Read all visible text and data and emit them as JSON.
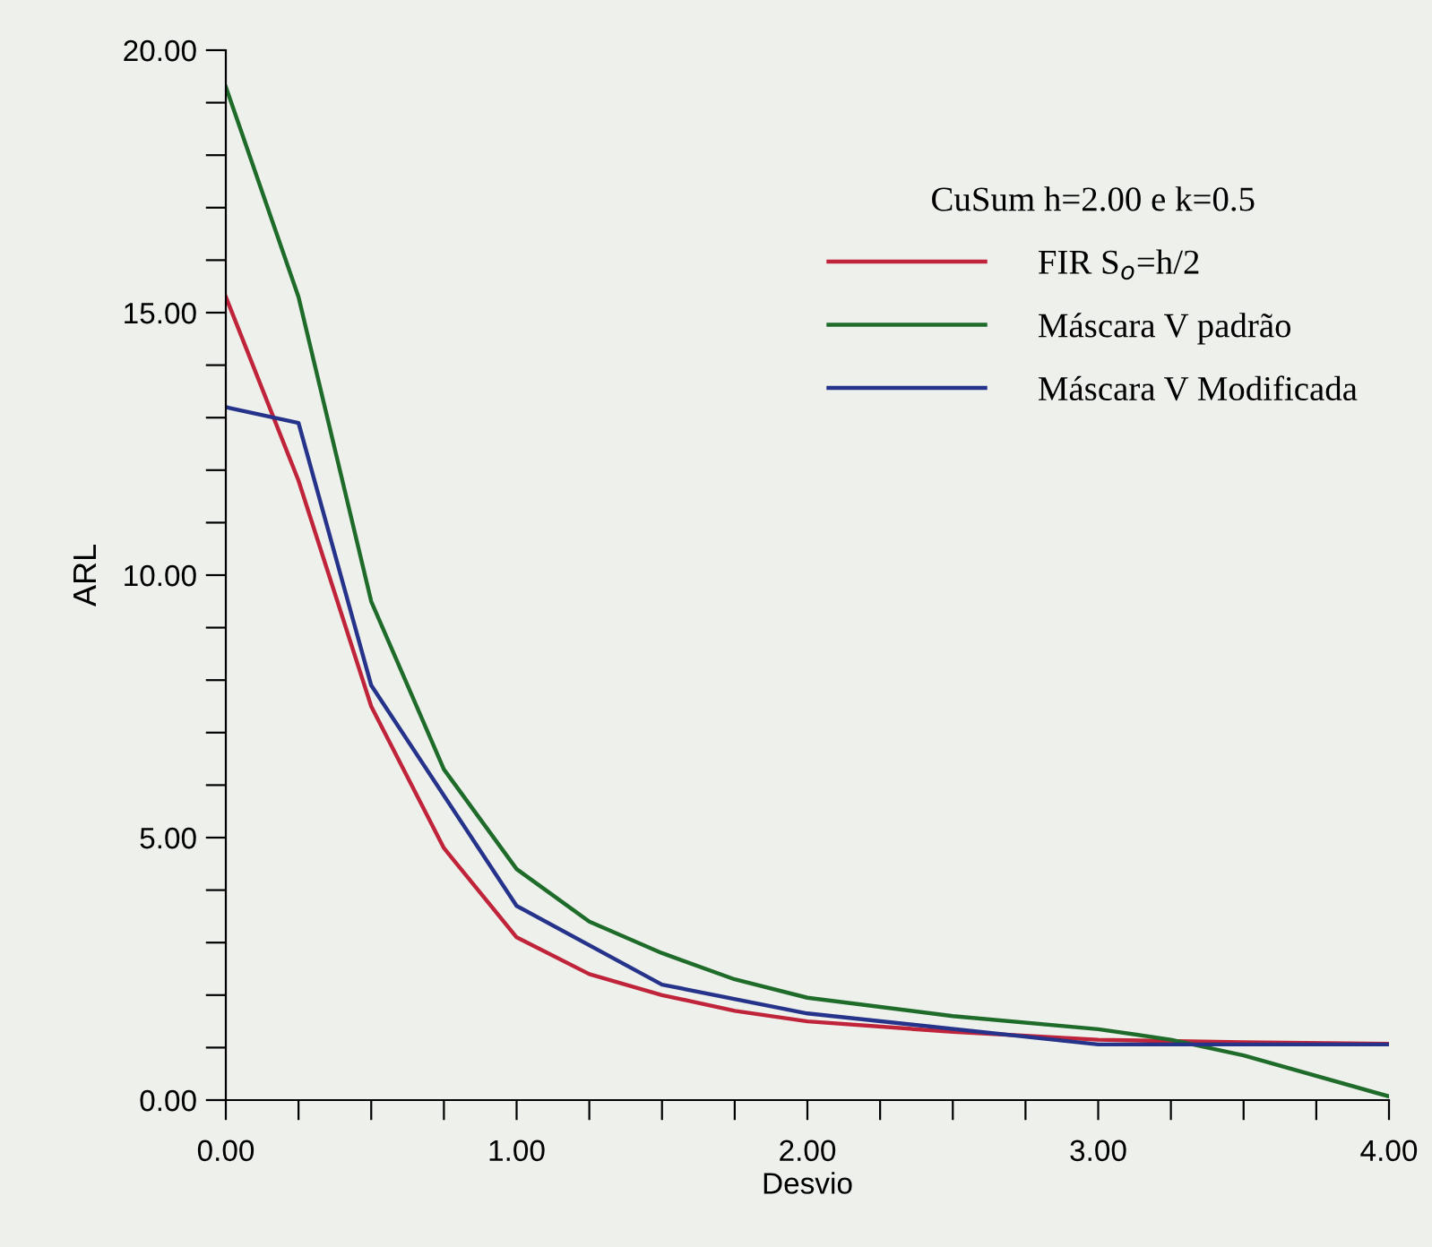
{
  "chart_data": {
    "type": "line",
    "xlabel": "Desvio",
    "ylabel": "ARL",
    "legend_title": "CuSum h=2.00 e k=0.5",
    "series": [
      {
        "name": "FIR S$_{o}$=h/2",
        "color": "#c0243a",
        "x": [
          0,
          0.25,
          0.5,
          0.75,
          1,
          1.25,
          1.5,
          1.75,
          2,
          2.5,
          3,
          3.5,
          4
        ],
        "values": [
          15.3,
          11.8,
          7.5,
          4.8,
          3.1,
          2.4,
          2.0,
          1.7,
          1.5,
          1.3,
          1.15,
          1.1,
          1.07
        ]
      },
      {
        "name": "Máscara V padrão",
        "color": "#1e6b2a",
        "x": [
          0,
          0.25,
          0.5,
          0.75,
          1,
          1.25,
          1.5,
          1.75,
          2,
          2.5,
          3,
          3.25,
          3.5,
          4
        ],
        "values": [
          19.3,
          15.3,
          9.5,
          6.3,
          4.4,
          3.4,
          2.8,
          2.3,
          1.95,
          1.6,
          1.35,
          1.15,
          0.85,
          0.07
        ]
      },
      {
        "name": "Máscara V Modificada",
        "color": "#26338a",
        "x": [
          0,
          0.25,
          0.5,
          1,
          1.5,
          2,
          3,
          4
        ],
        "values": [
          13.2,
          12.9,
          7.9,
          3.7,
          2.2,
          1.65,
          1.06,
          1.06
        ]
      }
    ],
    "xlim": [
      0,
      4
    ],
    "ylim": [
      0,
      20
    ],
    "xticks": [
      {
        "value": 0,
        "label": "0.00"
      },
      {
        "value": 0.25,
        "label": null
      },
      {
        "value": 0.5,
        "label": null
      },
      {
        "value": 0.75,
        "label": null
      },
      {
        "value": 1,
        "label": "1.00"
      },
      {
        "value": 1.25,
        "label": null
      },
      {
        "value": 1.5,
        "label": null
      },
      {
        "value": 1.75,
        "label": null
      },
      {
        "value": 2,
        "label": "2.00"
      },
      {
        "value": 2.25,
        "label": null
      },
      {
        "value": 2.5,
        "label": null
      },
      {
        "value": 2.75,
        "label": null
      },
      {
        "value": 3,
        "label": "3.00"
      },
      {
        "value": 3.25,
        "label": null
      },
      {
        "value": 3.5,
        "label": null
      },
      {
        "value": 3.75,
        "label": null
      },
      {
        "value": 4,
        "label": "4.00"
      }
    ],
    "yticks": [
      {
        "value": 0,
        "label": "0.00"
      },
      {
        "value": 1,
        "label": null
      },
      {
        "value": 2,
        "label": null
      },
      {
        "value": 3,
        "label": null
      },
      {
        "value": 4,
        "label": null
      },
      {
        "value": 5,
        "label": "5.00"
      },
      {
        "value": 6,
        "label": null
      },
      {
        "value": 7,
        "label": null
      },
      {
        "value": 8,
        "label": null
      },
      {
        "value": 9,
        "label": null
      },
      {
        "value": 10,
        "label": "10.00"
      },
      {
        "value": 11,
        "label": null
      },
      {
        "value": 12,
        "label": null
      },
      {
        "value": 13,
        "label": null
      },
      {
        "value": 14,
        "label": null
      },
      {
        "value": 15,
        "label": "15.00"
      },
      {
        "value": 16,
        "label": null
      },
      {
        "value": 17,
        "label": null
      },
      {
        "value": 18,
        "label": null
      },
      {
        "value": 19,
        "label": null
      },
      {
        "value": 20,
        "label": "20.00"
      }
    ],
    "grid": false,
    "legend": "top right",
    "marker": "none",
    "line_style": "solid"
  }
}
